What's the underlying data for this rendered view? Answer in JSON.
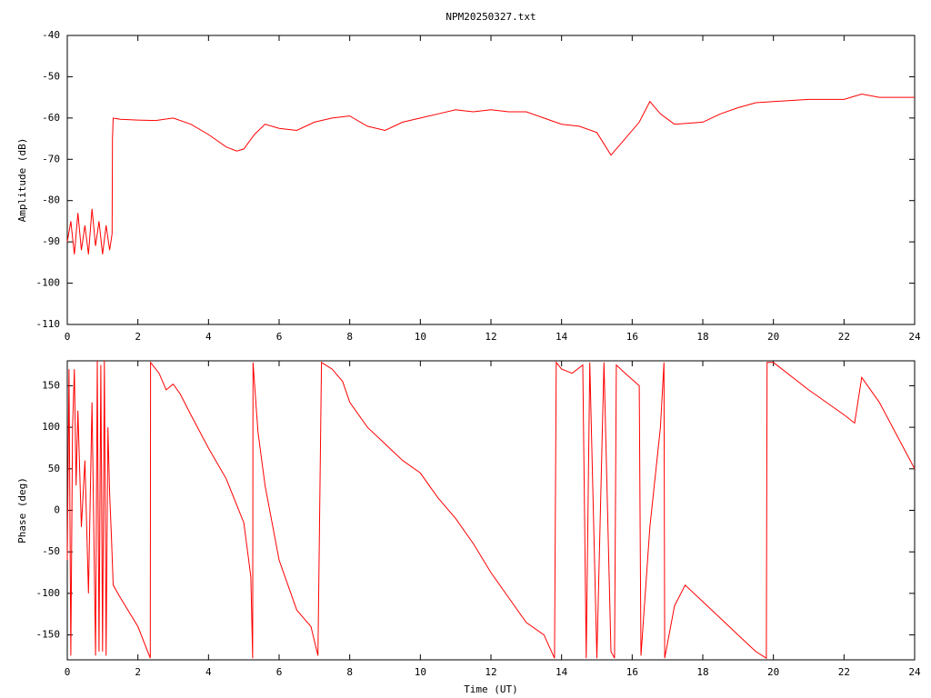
{
  "chart_data": [
    {
      "type": "line",
      "title": "NPM20250327.txt",
      "ylabel": "Amplitude (dB)",
      "color": "#ff0000",
      "xlim": [
        0,
        24
      ],
      "ylim": [
        -110,
        -40
      ],
      "xticks": [
        0,
        2,
        4,
        6,
        8,
        10,
        12,
        14,
        16,
        18,
        20,
        22,
        24
      ],
      "yticks": [
        -110,
        -100,
        -90,
        -80,
        -70,
        -60,
        -50,
        -40
      ],
      "x": [
        0,
        0.1,
        0.2,
        0.3,
        0.4,
        0.5,
        0.6,
        0.7,
        0.8,
        0.9,
        1.0,
        1.1,
        1.2,
        1.27,
        1.28,
        1.3,
        1.5,
        2,
        2.5,
        3,
        3.5,
        4,
        4.5,
        4.8,
        5,
        5.3,
        5.6,
        6,
        6.5,
        7,
        7.5,
        8,
        8.5,
        9,
        9.5,
        10,
        10.5,
        11,
        11.5,
        12,
        12.5,
        13,
        13.5,
        14,
        14.5,
        15,
        15.4,
        15.8,
        16.2,
        16.5,
        16.8,
        17.2,
        18,
        18.5,
        19,
        19.5,
        20,
        21,
        22,
        22.5,
        23,
        24
      ],
      "values": [
        -90,
        -85,
        -93,
        -83,
        -92,
        -86,
        -93,
        -82,
        -91,
        -85,
        -93,
        -86,
        -92,
        -88,
        -65,
        -60,
        -60.3,
        -60.5,
        -60.6,
        -60,
        -61.5,
        -64,
        -67,
        -68,
        -67.5,
        -64,
        -61.5,
        -62.5,
        -63,
        -61,
        -60,
        -59.5,
        -62,
        -63,
        -61,
        -60,
        -59,
        -58,
        -58.5,
        -58,
        -58.5,
        -58.5,
        -60,
        -61.5,
        -62,
        -63.5,
        -69,
        -65,
        -61,
        -56,
        -59,
        -61.5,
        -61,
        -59,
        -57.5,
        -56.3,
        -56,
        -55.5,
        -55.5,
        -54.2,
        -55,
        -55
      ]
    },
    {
      "type": "line",
      "ylabel": "Phase (deg)",
      "xlabel": "Time (UT)",
      "color": "#ff0000",
      "xlim": [
        0,
        24
      ],
      "ylim": [
        -180,
        180
      ],
      "xticks": [
        0,
        2,
        4,
        6,
        8,
        10,
        12,
        14,
        16,
        18,
        20,
        22,
        24
      ],
      "yticks": [
        -150,
        -100,
        -50,
        0,
        50,
        100,
        150
      ],
      "x": [
        0,
        0.05,
        0.1,
        0.15,
        0.2,
        0.25,
        0.3,
        0.4,
        0.5,
        0.6,
        0.7,
        0.8,
        0.85,
        0.9,
        0.95,
        1.0,
        1.05,
        1.1,
        1.15,
        1.2,
        1.25,
        1.3,
        1.5,
        2,
        2.35,
        2.36,
        2.6,
        2.8,
        3,
        3.2,
        3.5,
        4,
        4.5,
        5,
        5.2,
        5.25,
        5.26,
        5.4,
        5.6,
        6,
        6.5,
        6.7,
        6.9,
        7.1,
        7.2,
        7.5,
        7.8,
        8,
        8.5,
        9,
        9.5,
        10,
        10.5,
        11,
        11.5,
        12,
        12.5,
        13,
        13.5,
        13.8,
        13.85,
        14,
        14.3,
        14.6,
        14.7,
        14.8,
        15,
        15.2,
        15.4,
        15.5,
        15.55,
        15.8,
        16.2,
        16.25,
        16.5,
        16.8,
        16.9,
        16.92,
        17.2,
        17.5,
        18,
        18.5,
        19,
        19.5,
        19.8,
        19.82,
        20,
        21,
        22,
        22.3,
        22.5,
        23,
        24
      ],
      "values": [
        -60,
        170,
        -175,
        100,
        170,
        30,
        120,
        -20,
        60,
        -100,
        130,
        -175,
        180,
        -170,
        175,
        -170,
        180,
        -175,
        100,
        20,
        -30,
        -90,
        -105,
        -140,
        -178,
        178,
        165,
        145,
        152,
        140,
        115,
        75,
        38,
        -15,
        -80,
        -178,
        178,
        95,
        30,
        -60,
        -120,
        -130,
        -140,
        -175,
        178,
        170,
        155,
        130,
        100,
        80,
        60,
        45,
        15,
        -10,
        -40,
        -75,
        -105,
        -135,
        -150,
        -178,
        178,
        170,
        165,
        175,
        -178,
        178,
        -178,
        178,
        -170,
        -178,
        175,
        165,
        150,
        -175,
        -20,
        100,
        178,
        -178,
        -115,
        -90,
        -110,
        -130,
        -150,
        -170,
        -178,
        178,
        178,
        145,
        115,
        105,
        160,
        130,
        50
      ]
    }
  ]
}
